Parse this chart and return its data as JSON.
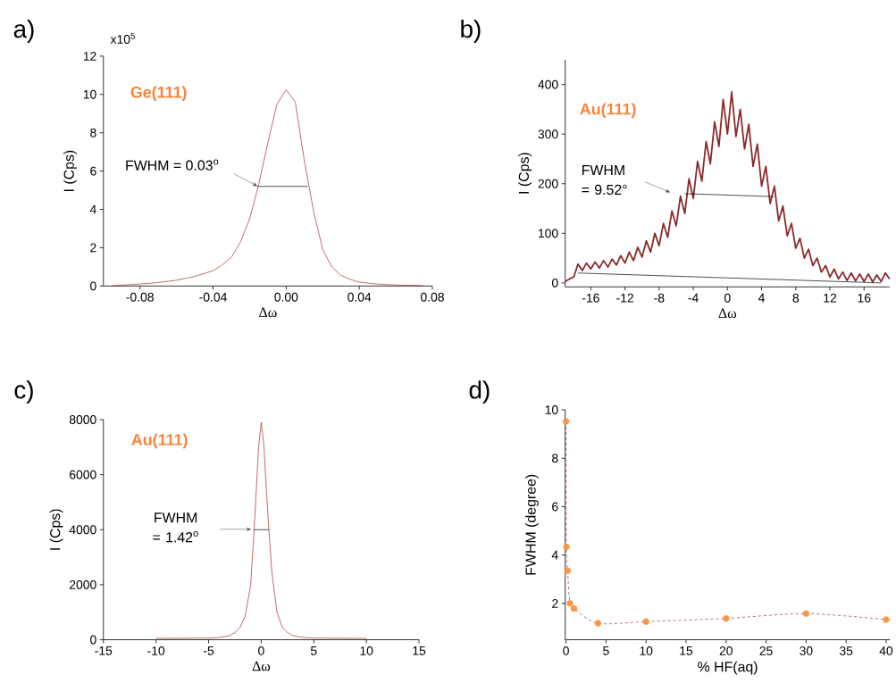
{
  "chart_data": [
    {
      "type": "line",
      "title": "a)",
      "xlabel": "Δω",
      "ylabel": "I (Cps)",
      "xlim": [
        -0.1,
        0.08
      ],
      "ylim": [
        0,
        12
      ],
      "xticks": [
        {
          "value": -0.08,
          "label": "-0.08"
        },
        {
          "value": -0.04,
          "label": "-0.04"
        },
        {
          "value": 0,
          "label": "0.00"
        },
        {
          "value": 0.04,
          "label": "0.04"
        },
        {
          "value": 0.08,
          "label": "0.08"
        }
      ],
      "yticks": [
        0,
        2,
        4,
        6,
        8,
        10,
        12
      ],
      "annotations": [
        "x10$^{5}$",
        "Ge(111)",
        "FWHM = 0.03$^{o}$"
      ],
      "series": [
        {
          "color": "#a0302e",
          "x": [
            -0.095,
            -0.08,
            -0.07,
            -0.06,
            -0.05,
            -0.04,
            -0.035,
            -0.03,
            -0.025,
            -0.02,
            -0.015,
            -0.01,
            -0.005,
            0,
            0.005,
            0.01,
            0.015,
            0.02,
            0.025,
            0.03,
            0.035,
            0.04,
            0.05,
            0.06,
            0.075
          ],
          "values": [
            0.02,
            0.1,
            0.18,
            0.3,
            0.5,
            0.8,
            1.1,
            1.5,
            2.3,
            3.5,
            5.3,
            7.5,
            9.5,
            10.25,
            9.6,
            6.5,
            3.9,
            1.9,
            1.0,
            0.55,
            0.35,
            0.2,
            0.1,
            0.05,
            0.02
          ]
        },
        {
          "color": "#000000",
          "x": [
            -0.0156,
            0.0117
          ],
          "values": [
            5.2,
            5.2
          ]
        }
      ]
    },
    {
      "type": "line",
      "title": "b)",
      "xlabel": "Δω",
      "ylabel": "I (Cps)",
      "xlim": [
        -19,
        19
      ],
      "ylim": [
        -8,
        450
      ],
      "xticks": [
        -16,
        -12,
        -8,
        -4,
        0,
        4,
        8,
        12,
        16
      ],
      "yticks": [
        0,
        100,
        200,
        300,
        400
      ],
      "annotations": [
        "Au(111)",
        "FWHM = 9.52°"
      ],
      "series": [
        {
          "color": "#8b2a2c",
          "x": [
            -19,
            -18.5,
            -18,
            -17.5,
            -17,
            -16.5,
            -16,
            -15.5,
            -15,
            -14.5,
            -14,
            -13.5,
            -13,
            -12.5,
            -12,
            -11.5,
            -11,
            -10.5,
            -10,
            -9.5,
            -9,
            -8.5,
            -8,
            -7.5,
            -7,
            -6.5,
            -6,
            -5.5,
            -5,
            -4.5,
            -4,
            -3.5,
            -3,
            -2.5,
            -2,
            -1.5,
            -1,
            -0.5,
            0,
            0.5,
            1,
            1.5,
            2,
            2.5,
            3,
            3.5,
            4,
            4.5,
            5,
            5.5,
            6,
            6.5,
            7,
            7.5,
            8,
            8.5,
            9,
            9.5,
            10,
            10.5,
            11,
            11.5,
            12,
            12.5,
            13,
            13.5,
            14,
            14.5,
            15,
            15.5,
            16,
            16.5,
            17,
            17.5,
            18,
            18.5,
            19
          ],
          "values": [
            3,
            8,
            12,
            38,
            25,
            40,
            28,
            42,
            30,
            45,
            32,
            48,
            36,
            55,
            40,
            62,
            45,
            72,
            52,
            85,
            62,
            100,
            75,
            120,
            92,
            145,
            115,
            175,
            140,
            210,
            170,
            245,
            205,
            285,
            240,
            325,
            275,
            370,
            300,
            385,
            295,
            350,
            270,
            320,
            235,
            280,
            195,
            235,
            160,
            195,
            125,
            155,
            95,
            120,
            70,
            90,
            50,
            68,
            35,
            50,
            22,
            35,
            12,
            28,
            8,
            22,
            5,
            20,
            4,
            18,
            3,
            18,
            2,
            16,
            3,
            20,
            8
          ]
        },
        {
          "color": "#000000",
          "x": [
            -17.5,
            18
          ],
          "values": [
            20,
            0
          ]
        },
        {
          "color": "#000000",
          "x": [
            -5.0,
            5.4
          ],
          "values": [
            180,
            174
          ]
        }
      ]
    },
    {
      "type": "line",
      "title": "c)",
      "xlabel": "Δω",
      "ylabel": "I (Cps)",
      "xlim": [
        -15,
        15
      ],
      "ylim": [
        0,
        8000
      ],
      "xticks": [
        -15,
        -10,
        -5,
        0,
        5,
        10,
        15
      ],
      "yticks": [
        0,
        2000,
        4000,
        6000,
        8000
      ],
      "annotations": [
        "Au(111)",
        "FWHM = 1.42$^{o}$"
      ],
      "series": [
        {
          "color": "#a0302e",
          "x": [
            -10,
            -5,
            -4,
            -3,
            -2.5,
            -2,
            -1.5,
            -1,
            -0.7,
            -0.5,
            -0.25,
            0,
            0.25,
            0.5,
            0.75,
            1,
            1.5,
            2,
            2.5,
            3,
            4,
            5,
            10
          ],
          "values": [
            50,
            60,
            80,
            150,
            260,
            450,
            900,
            2000,
            3800,
            5200,
            7000,
            7900,
            7100,
            5400,
            3900,
            2500,
            1000,
            450,
            260,
            150,
            80,
            60,
            50
          ]
        },
        {
          "color": "#000000",
          "x": [
            -0.68,
            0.76
          ],
          "values": [
            4000,
            4000
          ]
        }
      ]
    },
    {
      "type": "line",
      "title": "d)",
      "xlabel": "% HF(aq)",
      "ylabel": "FWHM (degree)",
      "xlim": [
        -0.1,
        40.5
      ],
      "ylim": [
        0.5,
        10
      ],
      "xticks": [
        0,
        5,
        10,
        15,
        20,
        25,
        30,
        35,
        40
      ],
      "yticks": [
        2,
        4,
        6,
        8,
        10
      ],
      "marker": "circle",
      "line_style": "dashed",
      "series": [
        {
          "color": "#a0302e",
          "colors": [
            "#f79646",
            "#f79646",
            "#f79646",
            "#f79646",
            "#f79646",
            "#f79646",
            "#f79646",
            "#f79646",
            "#f79646",
            "#f79646"
          ],
          "x": [
            0,
            0.05,
            0.2,
            0.5,
            1,
            4,
            10,
            20,
            30,
            40
          ],
          "values": [
            9.52,
            4.34,
            3.35,
            2.0,
            1.79,
            1.18,
            1.25,
            1.38,
            1.58,
            1.33
          ]
        }
      ]
    }
  ]
}
